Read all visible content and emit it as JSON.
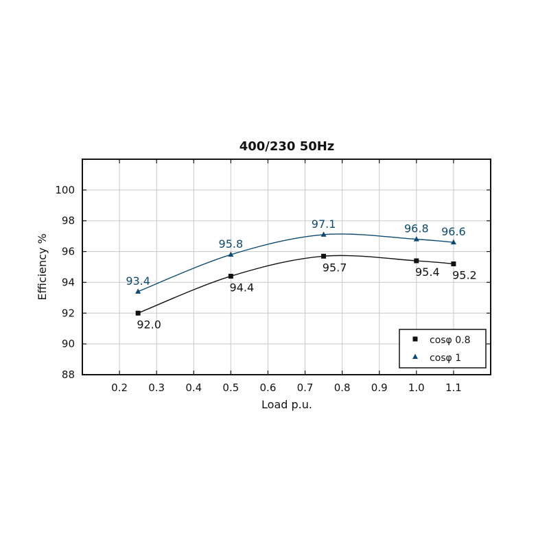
{
  "chart_data": {
    "type": "line",
    "title": "400/230 50Hz",
    "xlabel": "Load p.u.",
    "ylabel": "Efficiency %",
    "xlim": [
      0.1,
      1.2
    ],
    "ylim": [
      88,
      102
    ],
    "xticks": [
      0.2,
      0.3,
      0.4,
      0.5,
      0.6,
      0.7,
      0.8,
      0.9,
      1.0,
      1.1
    ],
    "xtick_labels": [
      "0.2",
      "0.3",
      "0.4",
      "0.5",
      "0.6",
      "0.7",
      "0.8",
      "0.9",
      "1.0",
      "1.1"
    ],
    "yticks": [
      88,
      90,
      92,
      94,
      96,
      98,
      100
    ],
    "ytick_labels": [
      "88",
      "90",
      "92",
      "94",
      "96",
      "98",
      "100"
    ],
    "grid": true,
    "legend_position": "bottom-right",
    "series": [
      {
        "name": "cosφ 0.8",
        "marker": "square",
        "color": "#111111",
        "x": [
          0.25,
          0.5,
          0.75,
          1.0,
          1.1
        ],
        "values": [
          92.0,
          94.4,
          95.7,
          95.4,
          95.2
        ],
        "labels": [
          "92.0",
          "94.4",
          "95.7",
          "95.4",
          "95.2"
        ],
        "label_position": "below"
      },
      {
        "name": "cosφ 1",
        "marker": "triangle",
        "color": "#0d4a72",
        "x": [
          0.25,
          0.5,
          0.75,
          1.0,
          1.1
        ],
        "values": [
          93.4,
          95.8,
          97.1,
          96.8,
          96.6
        ],
        "labels": [
          "93.4",
          "95.8",
          "97.1",
          "96.8",
          "96.6"
        ],
        "label_position": "above"
      }
    ]
  }
}
